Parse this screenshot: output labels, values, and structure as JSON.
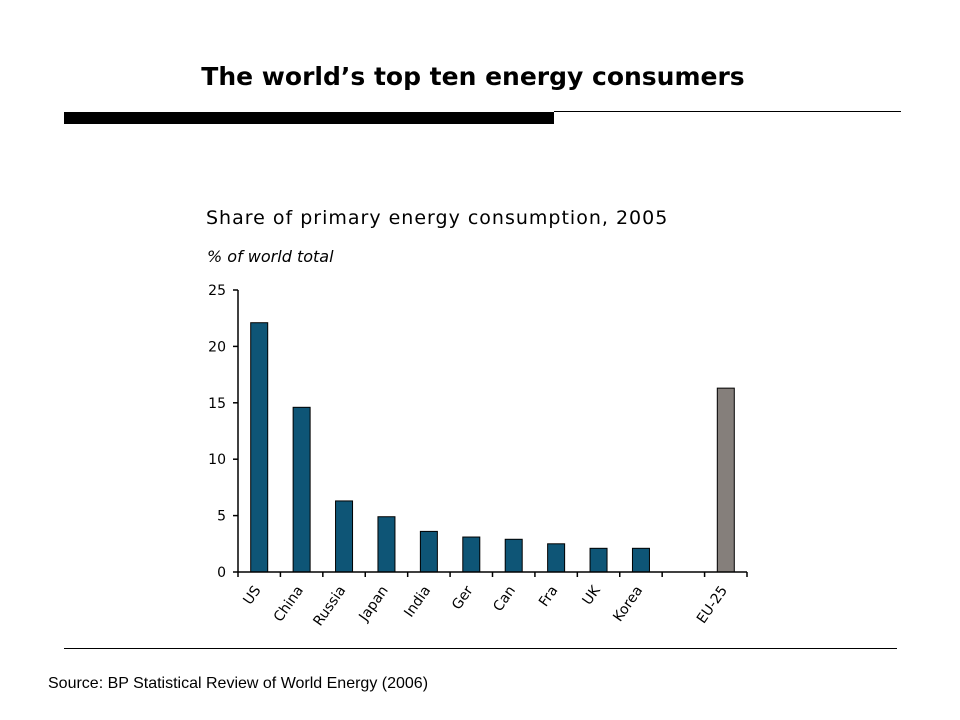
{
  "slide": {
    "title": "The world’s top ten energy consumers",
    "source": "Source: BP Statistical Review of World Energy (2006)"
  },
  "colors": {
    "bar_primary": "#0E5576",
    "bar_highlight": "#857F7B",
    "axis": "#000000"
  },
  "chart_data": {
    "type": "bar",
    "title": "Share of primary energy consumption, 2005",
    "subtitle": "% of world total",
    "categories": [
      "US",
      "China",
      "Russia",
      "Japan",
      "India",
      "Ger",
      "Can",
      "Fra",
      "UK",
      "Korea",
      "",
      "EU-25"
    ],
    "values": [
      22.1,
      14.6,
      6.3,
      4.9,
      3.6,
      3.1,
      2.9,
      2.5,
      2.1,
      2.1,
      null,
      16.3
    ],
    "highlight": [
      "EU-25"
    ],
    "ylim": [
      0,
      25
    ],
    "yticks": [
      0,
      5,
      10,
      15,
      20,
      25
    ],
    "xlabel": "",
    "ylabel": "",
    "grid": false
  }
}
